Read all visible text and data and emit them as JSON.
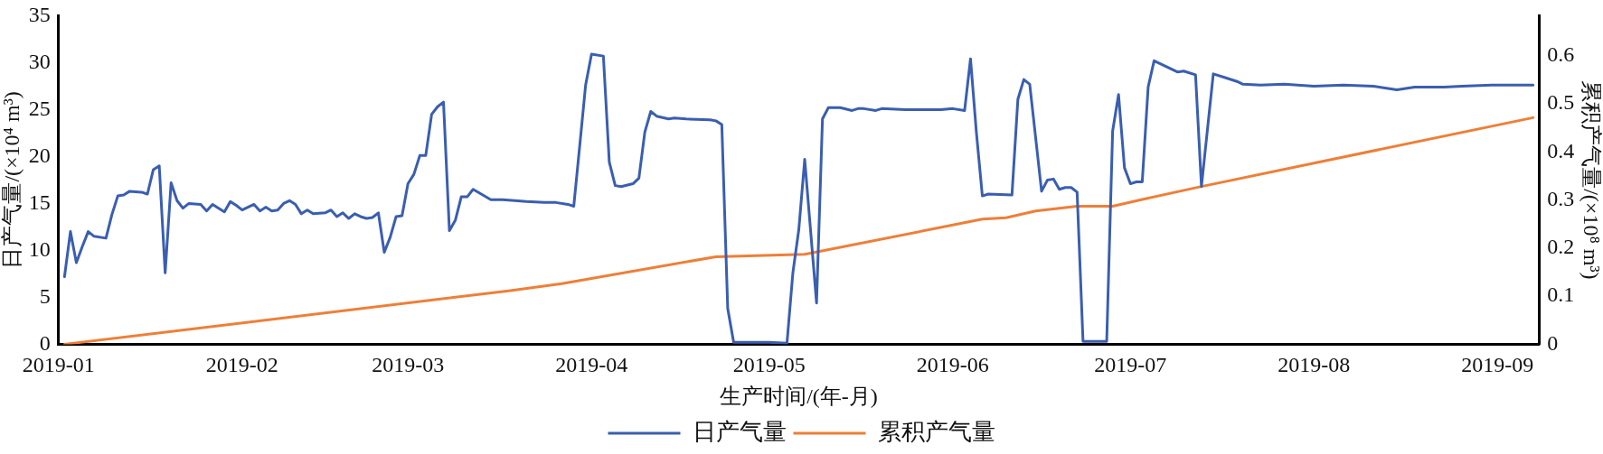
{
  "chart_data": {
    "type": "line",
    "xlabel": "生产时间/(年-月)",
    "ylabel": "日产气量/(×10⁴ m³)",
    "y2label": "累积产气量/(×10⁸ m³)",
    "xlim": [
      "2019-01-01",
      "2019-09-08"
    ],
    "xticks": [
      "2019-01",
      "2019-02",
      "2019-03",
      "2019-04",
      "2019-05",
      "2019-06",
      "2019-07",
      "2019-08",
      "2019-09"
    ],
    "ylim": [
      0,
      35
    ],
    "yticks": [
      0,
      5,
      10,
      15,
      20,
      25,
      30,
      35
    ],
    "y2lim": [
      0,
      0.683
    ],
    "y2ticks": [
      0,
      0.1,
      0.2,
      0.3,
      0.4,
      0.5,
      0.6
    ],
    "grid": false,
    "legend": "bottom",
    "marker": "none",
    "line_style": "solid",
    "series": [
      {
        "name": "日产气量",
        "color": "#3a5eb0",
        "x": [
          "2019-01-02",
          "2019-01-03",
          "2019-01-04",
          "2019-01-05",
          "2019-01-06",
          "2019-01-07",
          "2019-01-09",
          "2019-01-10",
          "2019-01-11",
          "2019-01-12",
          "2019-01-13",
          "2019-01-15",
          "2019-01-16",
          "2019-01-17",
          "2019-01-18",
          "2019-01-19",
          "2019-01-20",
          "2019-01-21",
          "2019-01-22",
          "2019-01-23",
          "2019-01-25",
          "2019-01-26",
          "2019-01-27",
          "2019-01-29",
          "2019-01-30",
          "2019-01-31",
          "2019-02-01",
          "2019-02-03",
          "2019-02-04",
          "2019-02-05",
          "2019-02-06",
          "2019-02-07",
          "2019-02-08",
          "2019-02-09",
          "2019-02-10",
          "2019-02-11",
          "2019-02-12",
          "2019-02-13",
          "2019-02-15",
          "2019-02-16",
          "2019-02-17",
          "2019-02-18",
          "2019-02-19",
          "2019-02-20",
          "2019-02-21",
          "2019-02-22",
          "2019-02-23",
          "2019-02-24",
          "2019-02-25",
          "2019-02-26",
          "2019-02-27",
          "2019-02-28",
          "2019-03-01",
          "2019-03-02",
          "2019-03-03",
          "2019-03-04",
          "2019-03-05",
          "2019-03-06",
          "2019-03-07",
          "2019-03-08",
          "2019-03-09",
          "2019-03-10",
          "2019-03-11",
          "2019-03-12",
          "2019-03-15",
          "2019-03-17",
          "2019-03-21",
          "2019-03-24",
          "2019-03-26",
          "2019-03-28",
          "2019-03-29",
          "2019-03-30",
          "2019-03-31",
          "2019-04-01",
          "2019-04-03",
          "2019-04-04",
          "2019-04-05",
          "2019-04-06",
          "2019-04-08",
          "2019-04-09",
          "2019-04-10",
          "2019-04-11",
          "2019-04-12",
          "2019-04-14",
          "2019-04-15",
          "2019-04-17",
          "2019-04-21",
          "2019-04-22",
          "2019-04-23",
          "2019-04-24",
          "2019-04-25",
          "2019-04-29",
          "2019-05-01",
          "2019-05-04",
          "2019-05-05",
          "2019-05-06",
          "2019-05-07",
          "2019-05-09",
          "2019-05-10",
          "2019-05-11",
          "2019-05-13",
          "2019-05-15",
          "2019-05-16",
          "2019-05-17",
          "2019-05-19",
          "2019-05-20",
          "2019-05-24",
          "2019-05-30",
          "2019-06-01",
          "2019-06-03",
          "2019-06-04",
          "2019-06-05",
          "2019-06-06",
          "2019-06-07",
          "2019-06-11",
          "2019-06-12",
          "2019-06-13",
          "2019-06-14",
          "2019-06-16",
          "2019-06-17",
          "2019-06-18",
          "2019-06-19",
          "2019-06-20",
          "2019-06-21",
          "2019-06-22",
          "2019-06-23",
          "2019-06-24",
          "2019-06-25",
          "2019-06-27",
          "2019-06-28",
          "2019-06-29",
          "2019-06-30",
          "2019-07-01",
          "2019-07-02",
          "2019-07-03",
          "2019-07-04",
          "2019-07-05",
          "2019-07-07",
          "2019-07-09",
          "2019-07-10",
          "2019-07-12",
          "2019-07-13",
          "2019-07-15",
          "2019-07-17",
          "2019-07-19",
          "2019-07-20",
          "2019-07-23",
          "2019-07-27",
          "2019-08-01",
          "2019-08-06",
          "2019-08-11",
          "2019-08-13",
          "2019-08-15",
          "2019-08-18",
          "2019-08-23",
          "2019-08-26",
          "2019-08-31",
          "2019-09-07"
        ],
        "values": [
          7.2,
          12.0,
          8.7,
          10.4,
          12.0,
          11.5,
          11.3,
          13.8,
          15.8,
          15.9,
          16.3,
          16.2,
          16.0,
          18.6,
          19.0,
          7.6,
          17.2,
          15.3,
          14.5,
          15.0,
          14.9,
          14.2,
          14.9,
          14.1,
          15.2,
          14.8,
          14.3,
          14.9,
          14.2,
          14.6,
          14.2,
          14.3,
          15.0,
          15.3,
          14.9,
          13.9,
          14.3,
          13.9,
          14.0,
          14.3,
          13.6,
          14.0,
          13.4,
          13.9,
          13.6,
          13.4,
          13.5,
          14.0,
          9.8,
          11.4,
          13.6,
          13.7,
          17.1,
          18.1,
          20.1,
          20.1,
          24.5,
          25.3,
          25.8,
          12.1,
          13.2,
          15.7,
          15.7,
          16.5,
          15.4,
          15.4,
          15.2,
          15.1,
          15.1,
          14.9,
          14.7,
          21.1,
          27.6,
          30.9,
          30.7,
          19.4,
          16.9,
          16.8,
          17.1,
          17.7,
          22.6,
          24.8,
          24.3,
          24.0,
          24.1,
          24.0,
          23.9,
          23.8,
          23.4,
          3.8,
          0.2,
          0.2,
          0.2,
          0.1,
          7.6,
          12.2,
          19.7,
          4.4,
          24.0,
          25.2,
          25.2,
          24.9,
          25.1,
          25.1,
          24.9,
          25.1,
          25.0,
          25.0,
          25.1,
          24.9,
          30.4,
          22.5,
          15.8,
          16.0,
          15.9,
          26.1,
          28.2,
          27.7,
          16.3,
          17.5,
          17.6,
          16.5,
          16.7,
          16.7,
          16.2,
          0.3,
          0.3,
          0.3,
          0.3,
          22.7,
          26.6,
          18.8,
          17.1,
          17.3,
          17.3,
          27.4,
          30.2,
          29.6,
          29.0,
          29.1,
          28.7,
          16.8,
          28.8,
          28.4,
          28.0,
          27.7,
          27.6,
          27.7,
          27.5,
          27.6,
          27.5,
          27.3,
          27.1,
          27.4,
          27.4,
          27.5,
          27.6,
          27.6
        ]
      },
      {
        "name": "累积产气量",
        "color": "#ee7f38",
        "axis": "y2",
        "x": [
          "2019-01-02",
          "2019-03-18",
          "2019-03-27",
          "2019-04-22",
          "2019-05-07",
          "2019-06-06",
          "2019-06-10",
          "2019-06-15",
          "2019-06-22",
          "2019-06-28",
          "2019-07-03",
          "2019-07-13",
          "2019-09-07"
        ],
        "values": [
          0,
          0.111,
          0.126,
          0.182,
          0.187,
          0.26,
          0.263,
          0.277,
          0.287,
          0.287,
          0.301,
          0.328,
          0.471
        ]
      }
    ]
  }
}
